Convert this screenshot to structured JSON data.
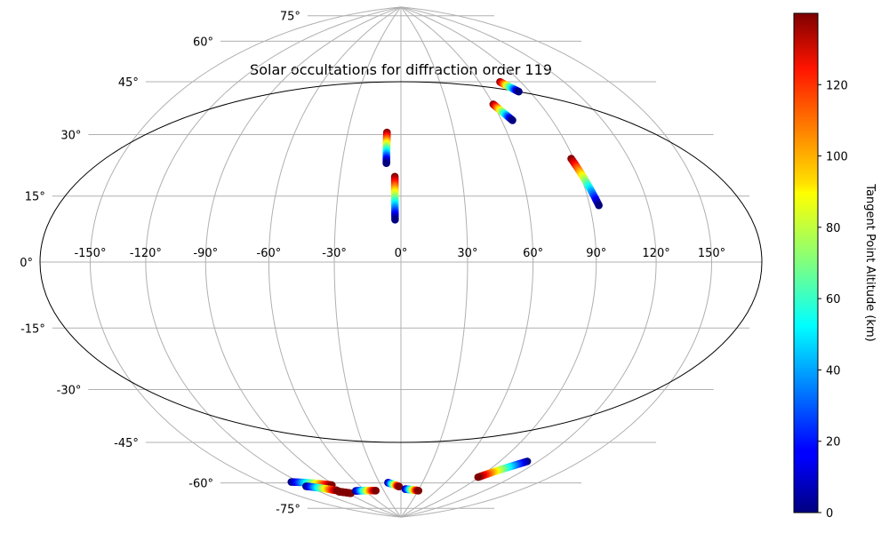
{
  "chart_data": [
    {
      "type": "scatter",
      "projection": "hammer",
      "title": "Solar occultations for diffraction order 119",
      "xlabel": "",
      "ylabel": "",
      "xlim": [
        -180,
        180
      ],
      "ylim": [
        -90,
        90
      ],
      "grid": true,
      "x_ticks": [
        {
          "value": -150,
          "label": "-150°"
        },
        {
          "value": -120,
          "label": "-120°"
        },
        {
          "value": -90,
          "label": "-90°"
        },
        {
          "value": -60,
          "label": "-60°"
        },
        {
          "value": -30,
          "label": "-30°"
        },
        {
          "value": 0,
          "label": "0°"
        },
        {
          "value": 30,
          "label": "30°"
        },
        {
          "value": 60,
          "label": "60°"
        },
        {
          "value": 90,
          "label": "90°"
        },
        {
          "value": 120,
          "label": "120°"
        },
        {
          "value": 150,
          "label": "150°"
        }
      ],
      "y_ticks": [
        {
          "value": -75,
          "label": "-75°"
        },
        {
          "value": -60,
          "label": "-60°"
        },
        {
          "value": -45,
          "label": "-45°"
        },
        {
          "value": -30,
          "label": "-30°"
        },
        {
          "value": -15,
          "label": "-15°"
        },
        {
          "value": 0,
          "label": "0°"
        },
        {
          "value": 15,
          "label": "15°"
        },
        {
          "value": 30,
          "label": "30°"
        },
        {
          "value": 45,
          "label": "45°"
        },
        {
          "value": 60,
          "label": "60°"
        },
        {
          "value": 75,
          "label": "75°"
        }
      ],
      "colormap": "jet",
      "color_range": [
        0,
        140
      ],
      "series": [
        {
          "lon": [
            -7.9,
            -7.4
          ],
          "lat": [
            42.1,
            31.8
          ],
          "alt": [
            140,
            0
          ]
        },
        {
          "lon": [
            -3.0,
            -2.7
          ],
          "lat": [
            27.4,
            13.5
          ],
          "alt": [
            140,
            0
          ]
        },
        {
          "lon": [
            60.0,
            66.5
          ],
          "lat": [
            50.4,
            44.6
          ],
          "alt": [
            140,
            0
          ]
        },
        {
          "lon": [
            75.2,
            82.6
          ],
          "lat": [
            57.5,
            53.5
          ],
          "alt": [
            140,
            0
          ]
        },
        {
          "lon": [
            88.7,
            94.6
          ],
          "lat": [
            31.0,
            16.6
          ],
          "alt": [
            140,
            0
          ]
        },
        {
          "lon": [
            -126.7,
            -93.0
          ],
          "lat": [
            -68.5,
            -73.2
          ],
          "alt": [
            0,
            140
          ]
        },
        {
          "lon": [
            -121.6,
            -98.0
          ],
          "lat": [
            -71.1,
            -75.4
          ],
          "alt": [
            0,
            140
          ]
        },
        {
          "lon": [
            -98.5,
            -86.4
          ],
          "lat": [
            -75.8,
            -77.4
          ],
          "alt": [
            140,
            140
          ]
        },
        {
          "lon": [
            -74.3,
            -43.3
          ],
          "lat": [
            -77.0,
            -78.1
          ],
          "alt": [
            0,
            140
          ]
        },
        {
          "lon": [
            -18.2,
            -2.8
          ],
          "lat": [
            -75.3,
            -77.0
          ],
          "alt": [
            0,
            140
          ]
        },
        {
          "lon": [
            7.2,
            30.7
          ],
          "lat": [
            -78.0,
            -78.4
          ],
          "alt": [
            0,
            140
          ]
        },
        {
          "lon": [
            111.8,
            88.9
          ],
          "lat": [
            -61.6,
            -70.1
          ],
          "alt": [
            0,
            140
          ]
        }
      ]
    },
    {
      "type": "colorbar",
      "label": "Tangent Point Altitude (km)",
      "range": [
        0,
        140
      ],
      "ticks": [
        0,
        20,
        40,
        60,
        80,
        100,
        120
      ]
    }
  ]
}
